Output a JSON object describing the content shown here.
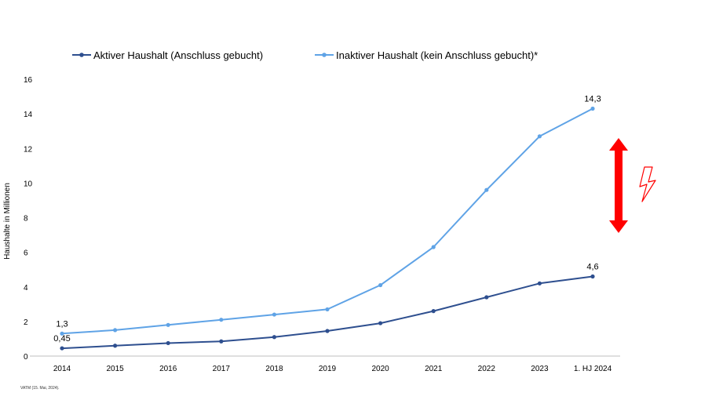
{
  "chart_data": {
    "type": "line",
    "categories": [
      "2014",
      "2015",
      "2016",
      "2017",
      "2018",
      "2019",
      "2020",
      "2021",
      "2022",
      "2023",
      "1. HJ 2024"
    ],
    "series": [
      {
        "name": "Aktiver Haushalt (Anschluss gebucht)",
        "color": "#2e4f8f",
        "values": [
          0.45,
          0.6,
          0.75,
          0.85,
          1.1,
          1.45,
          1.9,
          2.6,
          3.4,
          4.2,
          4.6
        ]
      },
      {
        "name": "Inaktiver Haushalt (kein Anschluss gebucht)*",
        "color": "#5fa3e6",
        "values": [
          1.3,
          1.5,
          1.8,
          2.1,
          2.4,
          2.7,
          4.1,
          6.3,
          9.6,
          12.7,
          14.3
        ]
      }
    ],
    "data_labels": [
      {
        "series": 1,
        "index": 0,
        "text": "1,3"
      },
      {
        "series": 0,
        "index": 0,
        "text": "0,45"
      },
      {
        "series": 1,
        "index": 10,
        "text": "14,3"
      },
      {
        "series": 0,
        "index": 10,
        "text": "4,6"
      }
    ],
    "ylabel": "Haushalte in Millionen",
    "xlabel": "",
    "ylim": [
      0,
      16
    ],
    "yticks": [
      0,
      2,
      4,
      6,
      8,
      10,
      12,
      14,
      16
    ],
    "legend_position": "top",
    "grid": false
  },
  "annotations": {
    "arrow_color": "#ff0000",
    "lightning_color": "#ff0000",
    "arrow_icon": "double-arrow-vertical-icon",
    "lightning_icon": "lightning-icon"
  },
  "footer": {
    "source": "VATM (15. Mai, 2024)."
  }
}
